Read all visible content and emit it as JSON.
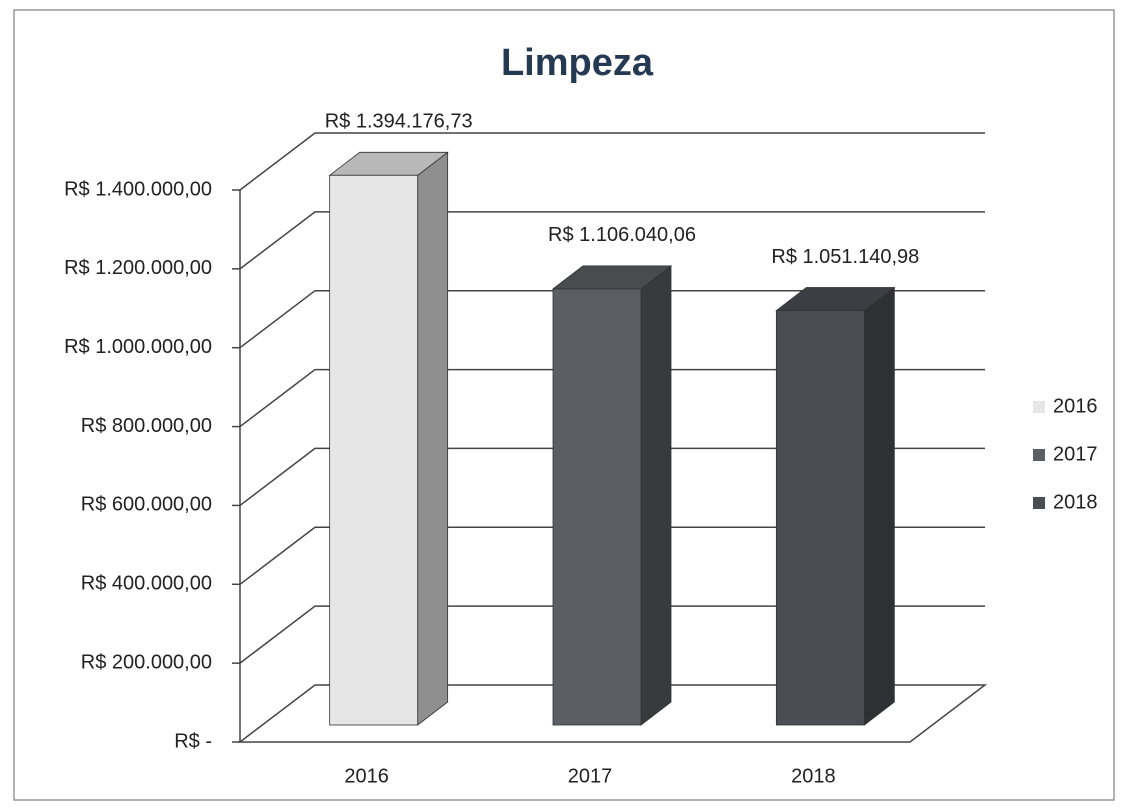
{
  "chart_data": {
    "type": "bar3d",
    "title": "Limpeza",
    "categories": [
      "2016",
      "2017",
      "2018"
    ],
    "values": [
      1394176.73,
      1106040.06,
      1051140.98
    ],
    "value_labels": [
      "R$ 1.394.176,73",
      "R$ 1.106.040,06",
      "R$ 1.051.140,98"
    ],
    "colors": [
      "#e6e6e6",
      "#5b5e63",
      "#4a4d52"
    ],
    "ylim": [
      0,
      1400000
    ],
    "yticks": [
      {
        "value": 0,
        "label": "R$ -"
      },
      {
        "value": 200000,
        "label": "R$ 200.000,00"
      },
      {
        "value": 400000,
        "label": "R$ 400.000,00"
      },
      {
        "value": 600000,
        "label": "R$ 600.000,00"
      },
      {
        "value": 800000,
        "label": "R$ 800.000,00"
      },
      {
        "value": 1000000,
        "label": "R$ 1.000.000,00"
      },
      {
        "value": 1200000,
        "label": "R$ 1.200.000,00"
      },
      {
        "value": 1400000,
        "label": "R$ 1.400.000,00"
      }
    ],
    "grid": true,
    "legend": "right"
  }
}
